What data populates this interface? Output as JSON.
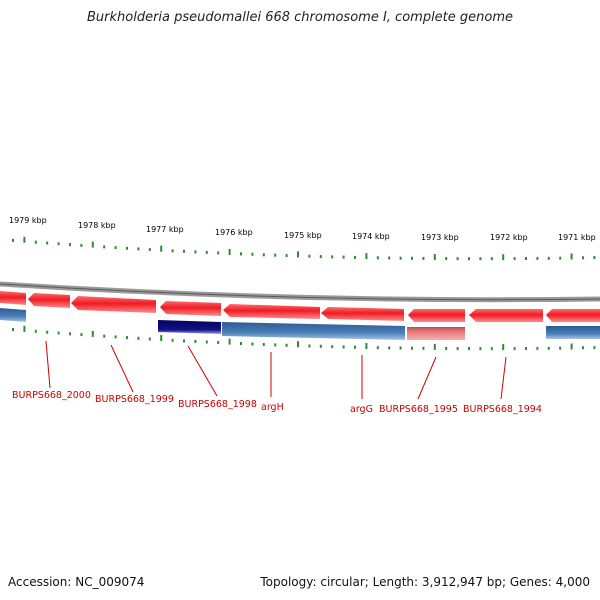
{
  "title": "Burkholderia pseudomallei 668 chromosome I, complete genome",
  "footer": {
    "accession": "Accession: NC_009074",
    "summary": "Topology: circular; Length: 3,912,947 bp; Genes: 4,000"
  },
  "colors": {
    "forward_gene": "#e8141e",
    "reverse_gene": "#3f6fa6",
    "highlight_gene": "#0a0a7a",
    "pseudo_gene": "#e06b6e",
    "tick": "#2e8b2e",
    "backbone": "#808080",
    "label": "#cc0000"
  },
  "kbp_ticks": [
    "1979 kbp",
    "1978 kbp",
    "1977 kbp",
    "1976 kbp",
    "1975 kbp",
    "1974 kbp",
    "1973 kbp",
    "1972 kbp",
    "1971 kbp"
  ],
  "gene_labels": [
    "BURPS668_2000",
    "BURPS668_1999",
    "BURPS668_1998",
    "argH",
    "argG",
    "BURPS668_1995",
    "BURPS668_1994"
  ]
}
